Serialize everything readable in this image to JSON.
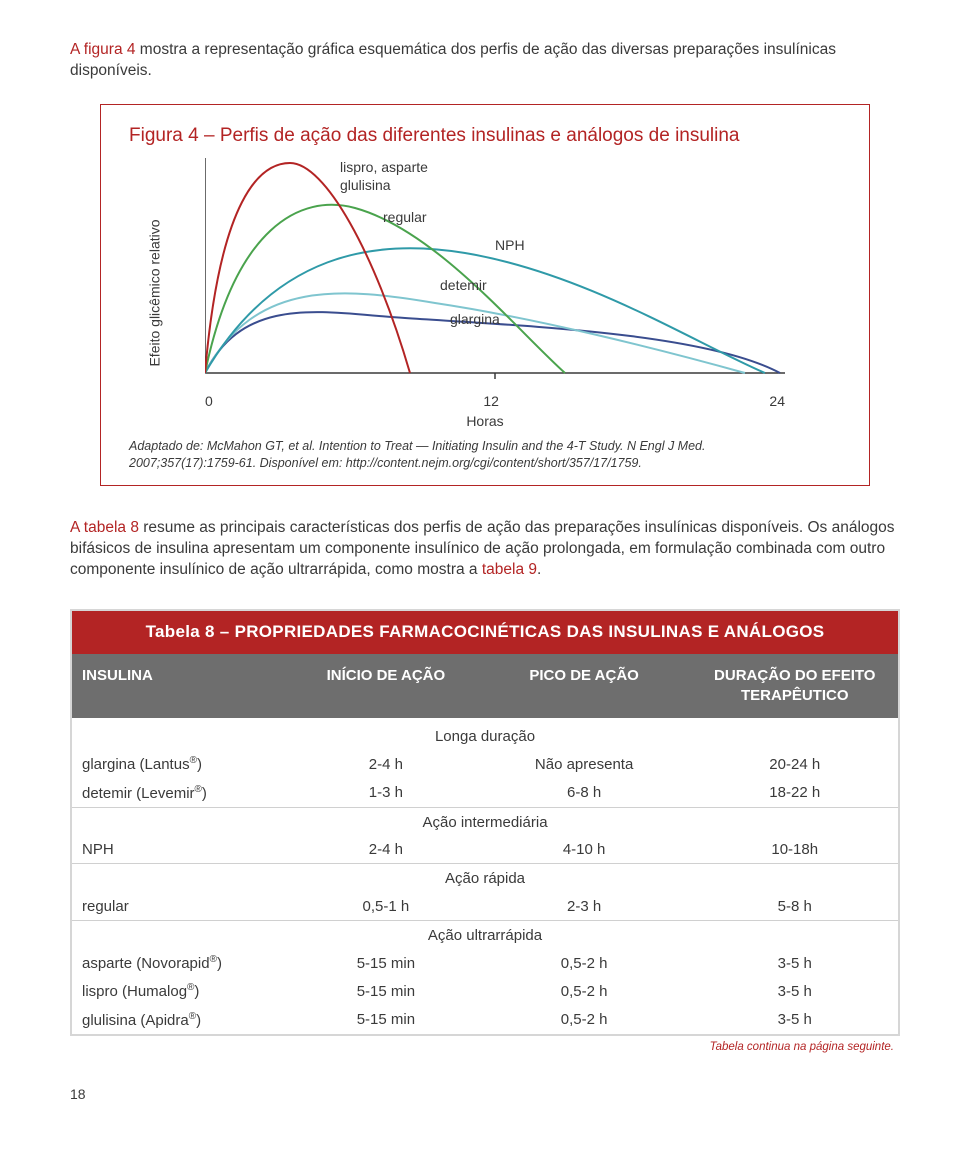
{
  "intro": {
    "lead_red": "A figura 4",
    "rest": " mostra a representação gráfica esquemática dos perfis de ação das diversas preparações insulínicas disponíveis."
  },
  "figure": {
    "title": "Figura 4 – Perfis de ação das diferentes insulinas e análogos de insulina",
    "ylabel": "Efeito glicêmico relativo",
    "xlabel": "Horas",
    "xticks": [
      "0",
      "12",
      "24"
    ],
    "series": {
      "lispro_asp": {
        "label1": "lispro, asparte",
        "label2": "glulisina",
        "color": "#b32424"
      },
      "regular": {
        "label": "regular",
        "color": "#4aa34d"
      },
      "nph": {
        "label": "NPH",
        "color": "#2f9aa8"
      },
      "detemir": {
        "label": "detemir",
        "color": "#7fc5cf"
      },
      "glargina": {
        "label": "glargina",
        "color": "#3a4d8f"
      }
    },
    "axes_color": "#3a3a3a",
    "caption_line1": "Adaptado de: McMahon GT, et al. Intention to Treat — Initiating Insulin and the 4-T Study. N Engl J Med.",
    "caption_line2": "2007;357(17):1759-61. Disponível em: http://content.nejm.org/cgi/content/short/357/17/1759."
  },
  "para2": {
    "seg1_red": "A tabela 8",
    "seg1_rest": " resume as principais características dos perfis de ação das preparações insulínicas disponíveis. Os análogos bifásicos de insulina apresentam um componente insulínico de ação prolongada, em formulação combinada com outro componente insulínico de ação ultrarrápida, como mostra a ",
    "seg2_red": "tabela 9",
    "seg2_rest": "."
  },
  "table": {
    "title": "Tabela 8 – PROPRIEDADES FARMACOCINÉTICAS DAS INSULINAS E ANÁLOGOS",
    "columns": [
      "INSULINA",
      "INÍCIO DE AÇÃO",
      "PICO DE AÇÃO",
      "DURAÇÃO DO EFEITO TERAPÊUTICO"
    ],
    "sections": [
      {
        "name": "Longa duração",
        "rows": [
          [
            "glargina (Lantus®)",
            "2-4 h",
            "Não apresenta",
            "20-24 h"
          ],
          [
            "detemir (Levemir®)",
            "1-3 h",
            "6-8 h",
            "18-22 h"
          ]
        ]
      },
      {
        "name": "Ação intermediária",
        "rows": [
          [
            "NPH",
            "2-4 h",
            "4-10 h",
            "10-18h"
          ]
        ]
      },
      {
        "name": "Ação rápida",
        "rows": [
          [
            "regular",
            "0,5-1 h",
            "2-3 h",
            "5-8 h"
          ]
        ]
      },
      {
        "name": "Ação ultrarrápida",
        "rows": [
          [
            "asparte (Novorapid®)",
            "5-15 min",
            "0,5-2 h",
            "3-5 h"
          ],
          [
            "lispro (Humalog®)",
            "5-15 min",
            "0,5-2 h",
            "3-5 h"
          ],
          [
            "glulisina (Apidra®)",
            "5-15 min",
            "0,5-2 h",
            "3-5 h"
          ]
        ]
      }
    ],
    "footnote": "Tabela continua na página seguinte."
  },
  "page_number": "18"
}
